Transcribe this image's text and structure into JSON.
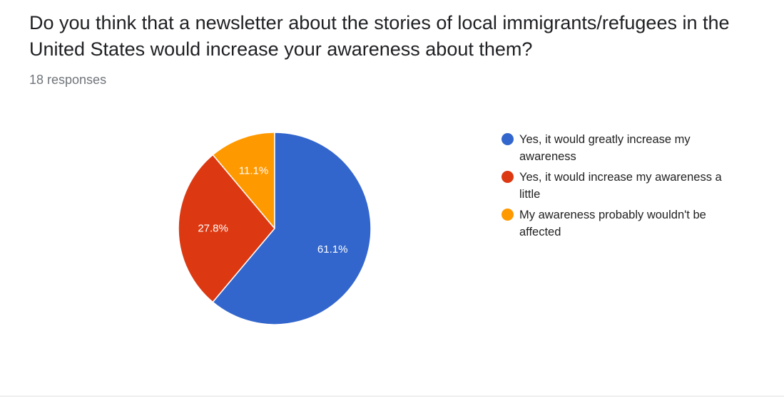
{
  "question": {
    "title": "Do you think that a newsletter about the stories of local immigrants/refugees in the United States would increase your awareness about them?",
    "responses": "18 responses"
  },
  "chart_data": {
    "type": "pie",
    "start_angle_deg": 90,
    "direction": "counter-clockwise",
    "slice_border_color": "#ffffff",
    "label_color": "#ffffff",
    "legend_placement": "right",
    "slices": [
      {
        "label": "My awareness probably wouldn't be affected",
        "value": 11.1,
        "value_label": "11.1%",
        "color": "#ff9900"
      },
      {
        "label": "Yes, it would increase my awareness a little",
        "value": 27.8,
        "value_label": "27.8%",
        "color": "#dc3912"
      },
      {
        "label": "Yes, it would greatly increase my awareness",
        "value": 61.1,
        "value_label": "61.1%",
        "color": "#3366cc"
      }
    ],
    "legend": [
      {
        "label": "Yes, it would greatly increase my awareness",
        "color": "#3366cc"
      },
      {
        "label": "Yes, it would increase my awareness a little",
        "color": "#dc3912"
      },
      {
        "label": "My awareness probably wouldn't be affected",
        "color": "#ff9900"
      }
    ]
  }
}
